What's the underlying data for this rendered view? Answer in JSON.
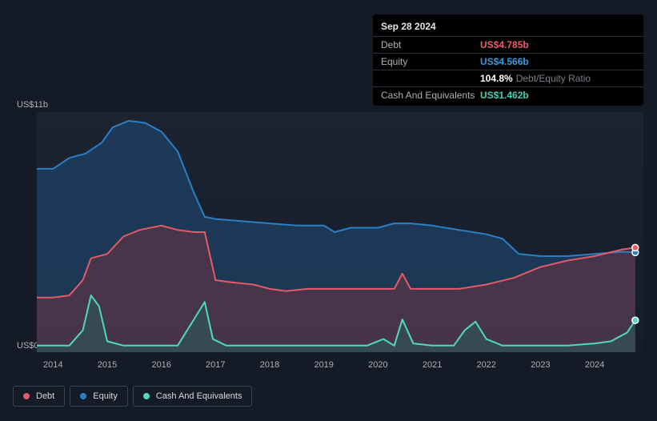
{
  "tooltip": {
    "date": "Sep 28 2024",
    "rows": {
      "debt": {
        "label": "Debt",
        "value": "US$4.785b"
      },
      "equity": {
        "label": "Equity",
        "value": "US$4.566b"
      },
      "ratio": {
        "label": "",
        "pct": "104.8%",
        "text": "Debt/Equity Ratio"
      },
      "cash": {
        "label": "Cash And Equivalents",
        "value": "US$1.462b"
      }
    }
  },
  "chart": {
    "type": "area",
    "y_axis": {
      "top_label": "US$11b",
      "bottom_label": "US$0",
      "min": 0,
      "max": 11
    },
    "x_axis": {
      "labels": [
        "2014",
        "2015",
        "2016",
        "2017",
        "2018",
        "2019",
        "2020",
        "2021",
        "2022",
        "2023",
        "2024"
      ],
      "min": 2013.7,
      "max": 2024.9
    },
    "background_gradient": [
      "#1c2331",
      "#161d2a"
    ],
    "grid_color": "#2c3442",
    "marker_x": 2024.75,
    "label_fontsize": 11,
    "label_color": "#aeb0b3",
    "series": {
      "equity": {
        "label": "Equity",
        "color": "#2b7fc5",
        "fill": "#1f4c78",
        "fill_opacity": 0.55,
        "points": [
          [
            2013.7,
            8.4
          ],
          [
            2014.0,
            8.4
          ],
          [
            2014.3,
            8.9
          ],
          [
            2014.6,
            9.1
          ],
          [
            2014.9,
            9.6
          ],
          [
            2015.1,
            10.3
          ],
          [
            2015.4,
            10.6
          ],
          [
            2015.7,
            10.5
          ],
          [
            2016.0,
            10.1
          ],
          [
            2016.3,
            9.2
          ],
          [
            2016.6,
            7.3
          ],
          [
            2016.8,
            6.2
          ],
          [
            2017.0,
            6.1
          ],
          [
            2017.5,
            6.0
          ],
          [
            2018.0,
            5.9
          ],
          [
            2018.5,
            5.8
          ],
          [
            2019.0,
            5.8
          ],
          [
            2019.2,
            5.5
          ],
          [
            2019.5,
            5.7
          ],
          [
            2020.0,
            5.7
          ],
          [
            2020.3,
            5.9
          ],
          [
            2020.6,
            5.9
          ],
          [
            2021.0,
            5.8
          ],
          [
            2021.5,
            5.6
          ],
          [
            2022.0,
            5.4
          ],
          [
            2022.3,
            5.2
          ],
          [
            2022.6,
            4.5
          ],
          [
            2023.0,
            4.4
          ],
          [
            2023.5,
            4.4
          ],
          [
            2024.0,
            4.5
          ],
          [
            2024.5,
            4.6
          ],
          [
            2024.75,
            4.57
          ]
        ]
      },
      "debt": {
        "label": "Debt",
        "color": "#e35a68",
        "fill": "#6b3542",
        "fill_opacity": 0.55,
        "points": [
          [
            2013.7,
            2.5
          ],
          [
            2014.0,
            2.5
          ],
          [
            2014.3,
            2.6
          ],
          [
            2014.55,
            3.3
          ],
          [
            2014.7,
            4.3
          ],
          [
            2015.0,
            4.5
          ],
          [
            2015.3,
            5.3
          ],
          [
            2015.6,
            5.6
          ],
          [
            2016.0,
            5.8
          ],
          [
            2016.3,
            5.6
          ],
          [
            2016.6,
            5.5
          ],
          [
            2016.8,
            5.5
          ],
          [
            2017.0,
            3.3
          ],
          [
            2017.3,
            3.2
          ],
          [
            2017.7,
            3.1
          ],
          [
            2018.0,
            2.9
          ],
          [
            2018.3,
            2.8
          ],
          [
            2018.7,
            2.9
          ],
          [
            2019.0,
            2.9
          ],
          [
            2019.5,
            2.9
          ],
          [
            2020.0,
            2.9
          ],
          [
            2020.3,
            2.9
          ],
          [
            2020.45,
            3.6
          ],
          [
            2020.6,
            2.9
          ],
          [
            2021.0,
            2.9
          ],
          [
            2021.5,
            2.9
          ],
          [
            2022.0,
            3.1
          ],
          [
            2022.5,
            3.4
          ],
          [
            2023.0,
            3.9
          ],
          [
            2023.5,
            4.2
          ],
          [
            2024.0,
            4.4
          ],
          [
            2024.5,
            4.7
          ],
          [
            2024.75,
            4.79
          ]
        ]
      },
      "cash": {
        "label": "Cash And Equivalents",
        "color": "#53d7be",
        "fill": "#2a5a57",
        "fill_opacity": 0.6,
        "points": [
          [
            2013.7,
            0.3
          ],
          [
            2014.0,
            0.3
          ],
          [
            2014.3,
            0.3
          ],
          [
            2014.55,
            1.0
          ],
          [
            2014.7,
            2.6
          ],
          [
            2014.85,
            2.1
          ],
          [
            2015.0,
            0.5
          ],
          [
            2015.3,
            0.3
          ],
          [
            2015.6,
            0.3
          ],
          [
            2016.0,
            0.3
          ],
          [
            2016.3,
            0.3
          ],
          [
            2016.65,
            1.7
          ],
          [
            2016.8,
            2.3
          ],
          [
            2016.95,
            0.6
          ],
          [
            2017.2,
            0.3
          ],
          [
            2017.6,
            0.3
          ],
          [
            2018.0,
            0.3
          ],
          [
            2018.5,
            0.3
          ],
          [
            2019.0,
            0.3
          ],
          [
            2019.5,
            0.3
          ],
          [
            2019.8,
            0.3
          ],
          [
            2020.1,
            0.6
          ],
          [
            2020.3,
            0.3
          ],
          [
            2020.45,
            1.5
          ],
          [
            2020.65,
            0.4
          ],
          [
            2021.0,
            0.3
          ],
          [
            2021.4,
            0.3
          ],
          [
            2021.6,
            1.0
          ],
          [
            2021.8,
            1.4
          ],
          [
            2022.0,
            0.6
          ],
          [
            2022.3,
            0.3
          ],
          [
            2022.7,
            0.3
          ],
          [
            2023.0,
            0.3
          ],
          [
            2023.5,
            0.3
          ],
          [
            2024.0,
            0.4
          ],
          [
            2024.3,
            0.5
          ],
          [
            2024.6,
            0.9
          ],
          [
            2024.75,
            1.46
          ]
        ]
      }
    }
  },
  "legend": {
    "border_color": "#3b4250",
    "text_color": "#d7d9dc",
    "fontsize": 11,
    "items": [
      {
        "key": "debt",
        "label": "Debt",
        "color": "#e35a68"
      },
      {
        "key": "equity",
        "label": "Equity",
        "color": "#2b7fc5"
      },
      {
        "key": "cash",
        "label": "Cash And Equivalents",
        "color": "#53d7be"
      }
    ]
  }
}
